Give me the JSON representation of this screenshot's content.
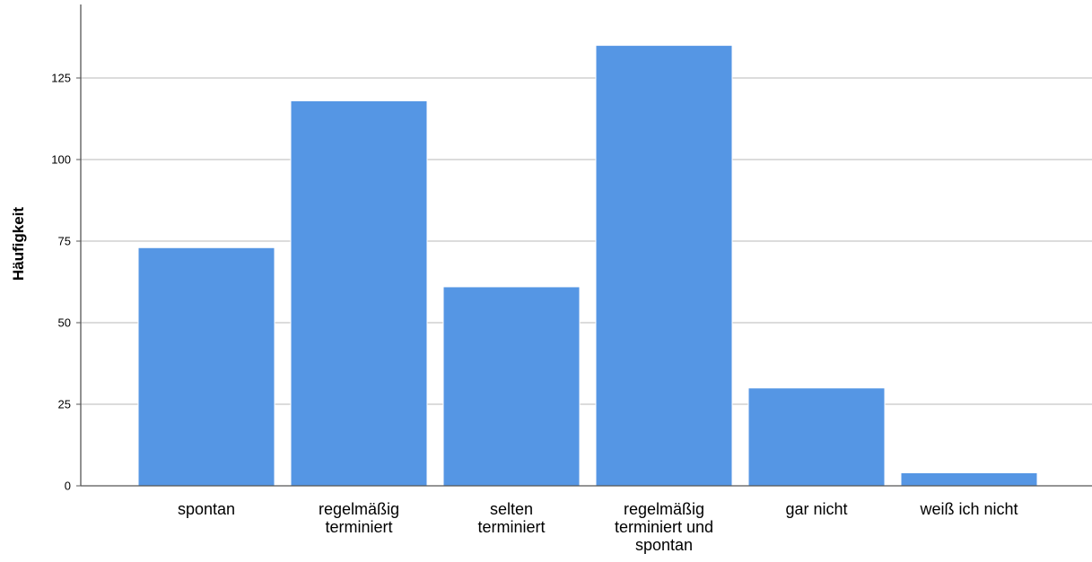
{
  "chart_data": {
    "type": "bar",
    "ylabel": "Häufigkeit",
    "xlabel": "",
    "ylim": [
      0,
      145
    ],
    "yticks": [
      0,
      25,
      50,
      75,
      100,
      125
    ],
    "grid": true,
    "bar_color": "#5596e4",
    "categories": [
      [
        "spontan"
      ],
      [
        "regelmäßig",
        "terminiert"
      ],
      [
        "selten",
        "terminiert"
      ],
      [
        "regelmäßig",
        "terminiert und",
        "spontan"
      ],
      [
        "gar nicht"
      ],
      [
        "weiß ich nicht"
      ]
    ],
    "values": [
      73,
      118,
      61,
      135,
      30,
      4
    ]
  }
}
